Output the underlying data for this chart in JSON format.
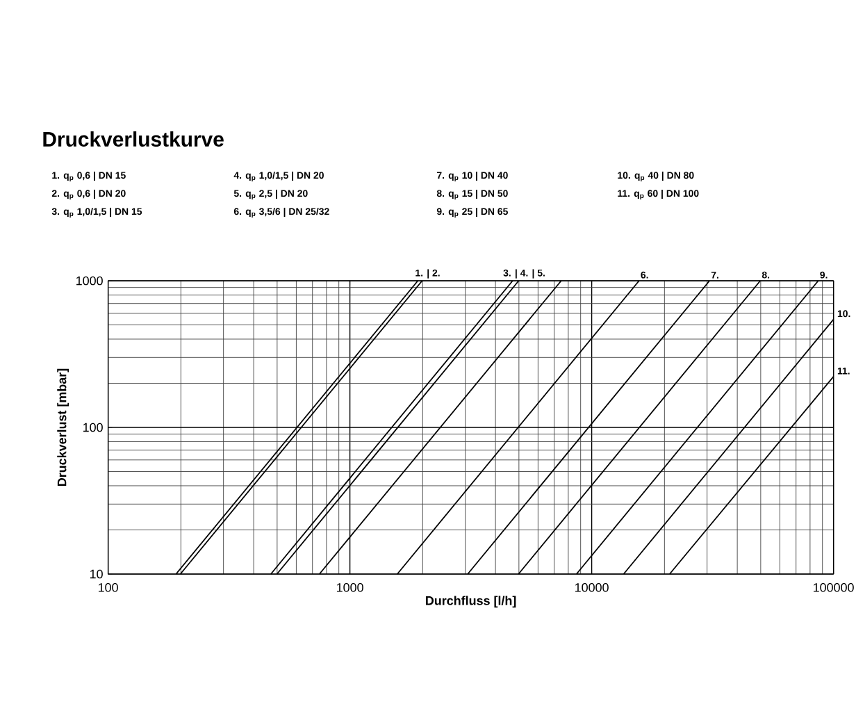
{
  "chart_data": {
    "type": "line",
    "title": "Druckverlustkurve",
    "xlabel": "Durchfluss [l/h]",
    "ylabel": "Druckverlust [mbar]",
    "log": "xy",
    "grid": true,
    "xlim": [
      100,
      100000
    ],
    "ylim": [
      10,
      1000
    ],
    "xticks": [
      100,
      1000,
      10000,
      100000
    ],
    "yticks": [
      10,
      100,
      1000
    ],
    "series": [
      {
        "color": "#000000",
        "x": [
          191,
          1910
        ],
        "values": [
          10,
          1000
        ]
      },
      {
        "color": "#000000",
        "x": [
          199,
          1990
        ],
        "values": [
          10,
          1000
        ]
      },
      {
        "color": "#000000",
        "x": [
          471,
          4710
        ],
        "values": [
          10,
          1000
        ]
      },
      {
        "color": "#000000",
        "x": [
          499,
          4990
        ],
        "values": [
          10,
          1000
        ]
      },
      {
        "color": "#000000",
        "x": [
          748,
          7480
        ],
        "values": [
          10,
          1000
        ]
      },
      {
        "color": "#000000",
        "x": [
          1570,
          15700
        ],
        "values": [
          10,
          1000
        ]
      },
      {
        "color": "#000000",
        "x": [
          3070,
          30700
        ],
        "values": [
          10,
          1000
        ]
      },
      {
        "color": "#000000",
        "x": [
          4980,
          49800
        ],
        "values": [
          10,
          1000
        ]
      },
      {
        "color": "#000000",
        "x": [
          8650,
          86500
        ],
        "values": [
          10,
          1000
        ]
      },
      {
        "color": "#000000",
        "x": [
          13550,
          100000
        ],
        "values": [
          10,
          545
        ]
      },
      {
        "color": "#000000",
        "x": [
          21000,
          100000
        ],
        "values": [
          10,
          222
        ]
      }
    ],
    "annotations": [
      "1. q$_{p}$ 0,6 | DN 15",
      "2. q$_{p}$ 0,6 | DN 20",
      "3. q$_{p}$ 1,0/1,5 | DN 15",
      "4. q$_{p}$ 1,0/1,5 | DN 20",
      "5. q$_{p}$ 2,5 | DN 20",
      "6. q$_{p}$ 3,5/6 | DN 25/32",
      "7. q$_{p}$ 10 | DN 40",
      "8. q$_{p}$ 15 | DN 50",
      "9. q$_{p}$ 25 | DN 65",
      "10. q$_{p}$ 40 | DN 80",
      "11. q$_{p}$ 60 | DN 100",
      {
        "text": "1. | 2.",
        "x": 1990,
        "y": 1000
      },
      {
        "text": "3. | 4. | 5.",
        "x": 4990,
        "y": 1000
      },
      {
        "text": "6.",
        "x": 15700,
        "y": 1000
      },
      {
        "text": "7.",
        "x": 30700,
        "y": 1000
      },
      {
        "text": "8.",
        "x": 49800,
        "y": 1000
      },
      {
        "text": "9.",
        "x": 86500,
        "y": 1000
      },
      {
        "text": "10.",
        "x": 100000,
        "y": 545
      },
      {
        "text": "11.",
        "x": 100000,
        "y": 222
      }
    ]
  }
}
